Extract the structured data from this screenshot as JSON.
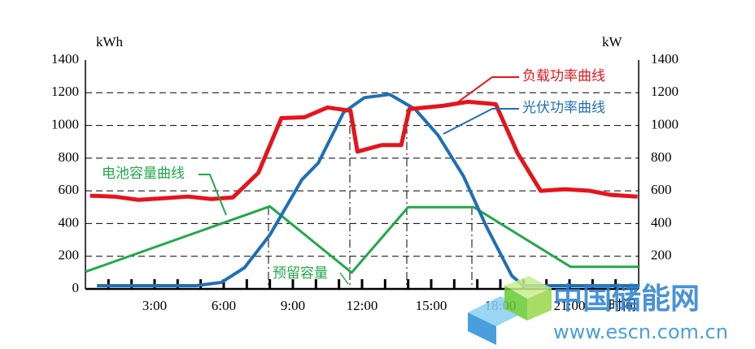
{
  "chart_data": {
    "type": "line",
    "y_unit": "kWh",
    "y2_unit": "kW",
    "x_label": "时间",
    "xlim": [
      0,
      24
    ],
    "xticks": [
      {
        "value": 3,
        "label": "3:00"
      },
      {
        "value": 6,
        "label": "6:00"
      },
      {
        "value": 9,
        "label": "9:00"
      },
      {
        "value": 12,
        "label": "12:00"
      },
      {
        "value": 15,
        "label": "15:00"
      },
      {
        "value": 18,
        "label": "18:00"
      },
      {
        "value": 21,
        "label": "21:00"
      }
    ],
    "ylim": [
      0,
      1400
    ],
    "yticks": [
      0,
      200,
      400,
      600,
      800,
      1000,
      1200,
      1400
    ],
    "y2lim": [
      0,
      1400
    ],
    "y2ticks": [
      200,
      400,
      600,
      800,
      1000,
      1200,
      1400
    ],
    "grid": true,
    "series": [
      {
        "name": "负载功率曲线",
        "color": "#e5141c",
        "axis": "y2",
        "x": [
          0.2,
          1.25,
          2.3,
          3.4,
          4.45,
          5.45,
          6.4,
          7.5,
          8.5,
          9.5,
          10.5,
          11.5,
          11.8,
          12.85,
          13.7,
          14.05,
          15.5,
          16.6,
          17.8,
          18.75,
          19.75,
          20.8,
          21.9,
          22.8,
          23.95
        ],
        "values": [
          570,
          565,
          545,
          555,
          565,
          550,
          560,
          710,
          1045,
          1050,
          1110,
          1090,
          840,
          880,
          880,
          1100,
          1120,
          1145,
          1130,
          830,
          600,
          610,
          600,
          575,
          565
        ]
      },
      {
        "name": "光伏功率曲线",
        "color": "#1f6fb4",
        "axis": "y2",
        "x": [
          0.5,
          4.8,
          5.9,
          6.9,
          8,
          9.4,
          10.1,
          11.2,
          12.1,
          13.2,
          14.3,
          15.3,
          16.4,
          17.4,
          18.5,
          19,
          24
        ],
        "values": [
          20,
          20,
          40,
          130,
          330,
          670,
          770,
          1080,
          1170,
          1190,
          1100,
          940,
          690,
          380,
          80,
          20,
          20
        ]
      },
      {
        "name": "电池容量曲线",
        "color": "#22a84a",
        "x": [
          0,
          8,
          11.55,
          14,
          16.85,
          21.05,
          24
        ],
        "values": [
          105,
          505,
          100,
          500,
          500,
          135,
          135
        ]
      }
    ],
    "annotations": [
      "预留容量"
    ],
    "watermark": [
      "中国储能网",
      "www.escn.com.cn"
    ]
  }
}
